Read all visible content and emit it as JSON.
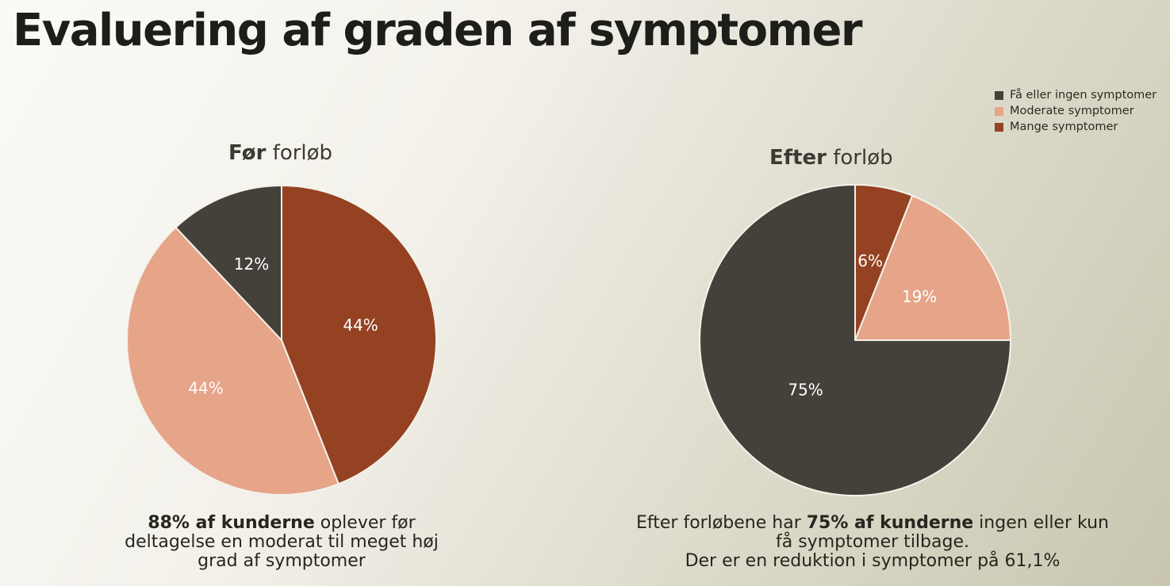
{
  "page": {
    "title": "Evaluering af graden af symptomer"
  },
  "legend": {
    "items": [
      {
        "label": "Få eller ingen symptomer",
        "color": "#43413a"
      },
      {
        "label": "Moderate symptomer",
        "color": "#e6a488"
      },
      {
        "label": "Mange symptomer",
        "color": "#944222"
      }
    ]
  },
  "before": {
    "subtitle_bold": "Før",
    "subtitle_rest": " forløb",
    "caption_bold": "88% af kunderne",
    "caption_rest": " oplever før deltagelse en moderat til meget høj grad af symptomer"
  },
  "after": {
    "subtitle_bold": "Efter",
    "subtitle_rest": " forløb",
    "caption_pre": "Efter forløbene har ",
    "caption_bold": "75% af kunderne",
    "caption_post": " ingen eller kun få symptomer tilbage.",
    "caption_line2": "Der er en reduktion i symptomer på 61,1%"
  },
  "chart_data": [
    {
      "type": "pie",
      "title": "Før forløb",
      "categories": [
        "Mange symptomer",
        "Moderate symptomer",
        "Få eller ingen symptomer"
      ],
      "values": [
        44,
        44,
        12
      ],
      "labels": [
        "44%",
        "44%",
        "12%"
      ],
      "colors": [
        "#944222",
        "#e6a488",
        "#43413a"
      ],
      "start": "top",
      "direction": "clockwise"
    },
    {
      "type": "pie",
      "title": "Efter forløb",
      "categories": [
        "Mange symptomer",
        "Moderate symptomer",
        "Få eller ingen symptomer"
      ],
      "values": [
        6,
        19,
        75
      ],
      "labels": [
        "6%",
        "19%",
        "75%"
      ],
      "colors": [
        "#944222",
        "#e6a488",
        "#43413a"
      ],
      "start": "top",
      "direction": "clockwise"
    }
  ]
}
